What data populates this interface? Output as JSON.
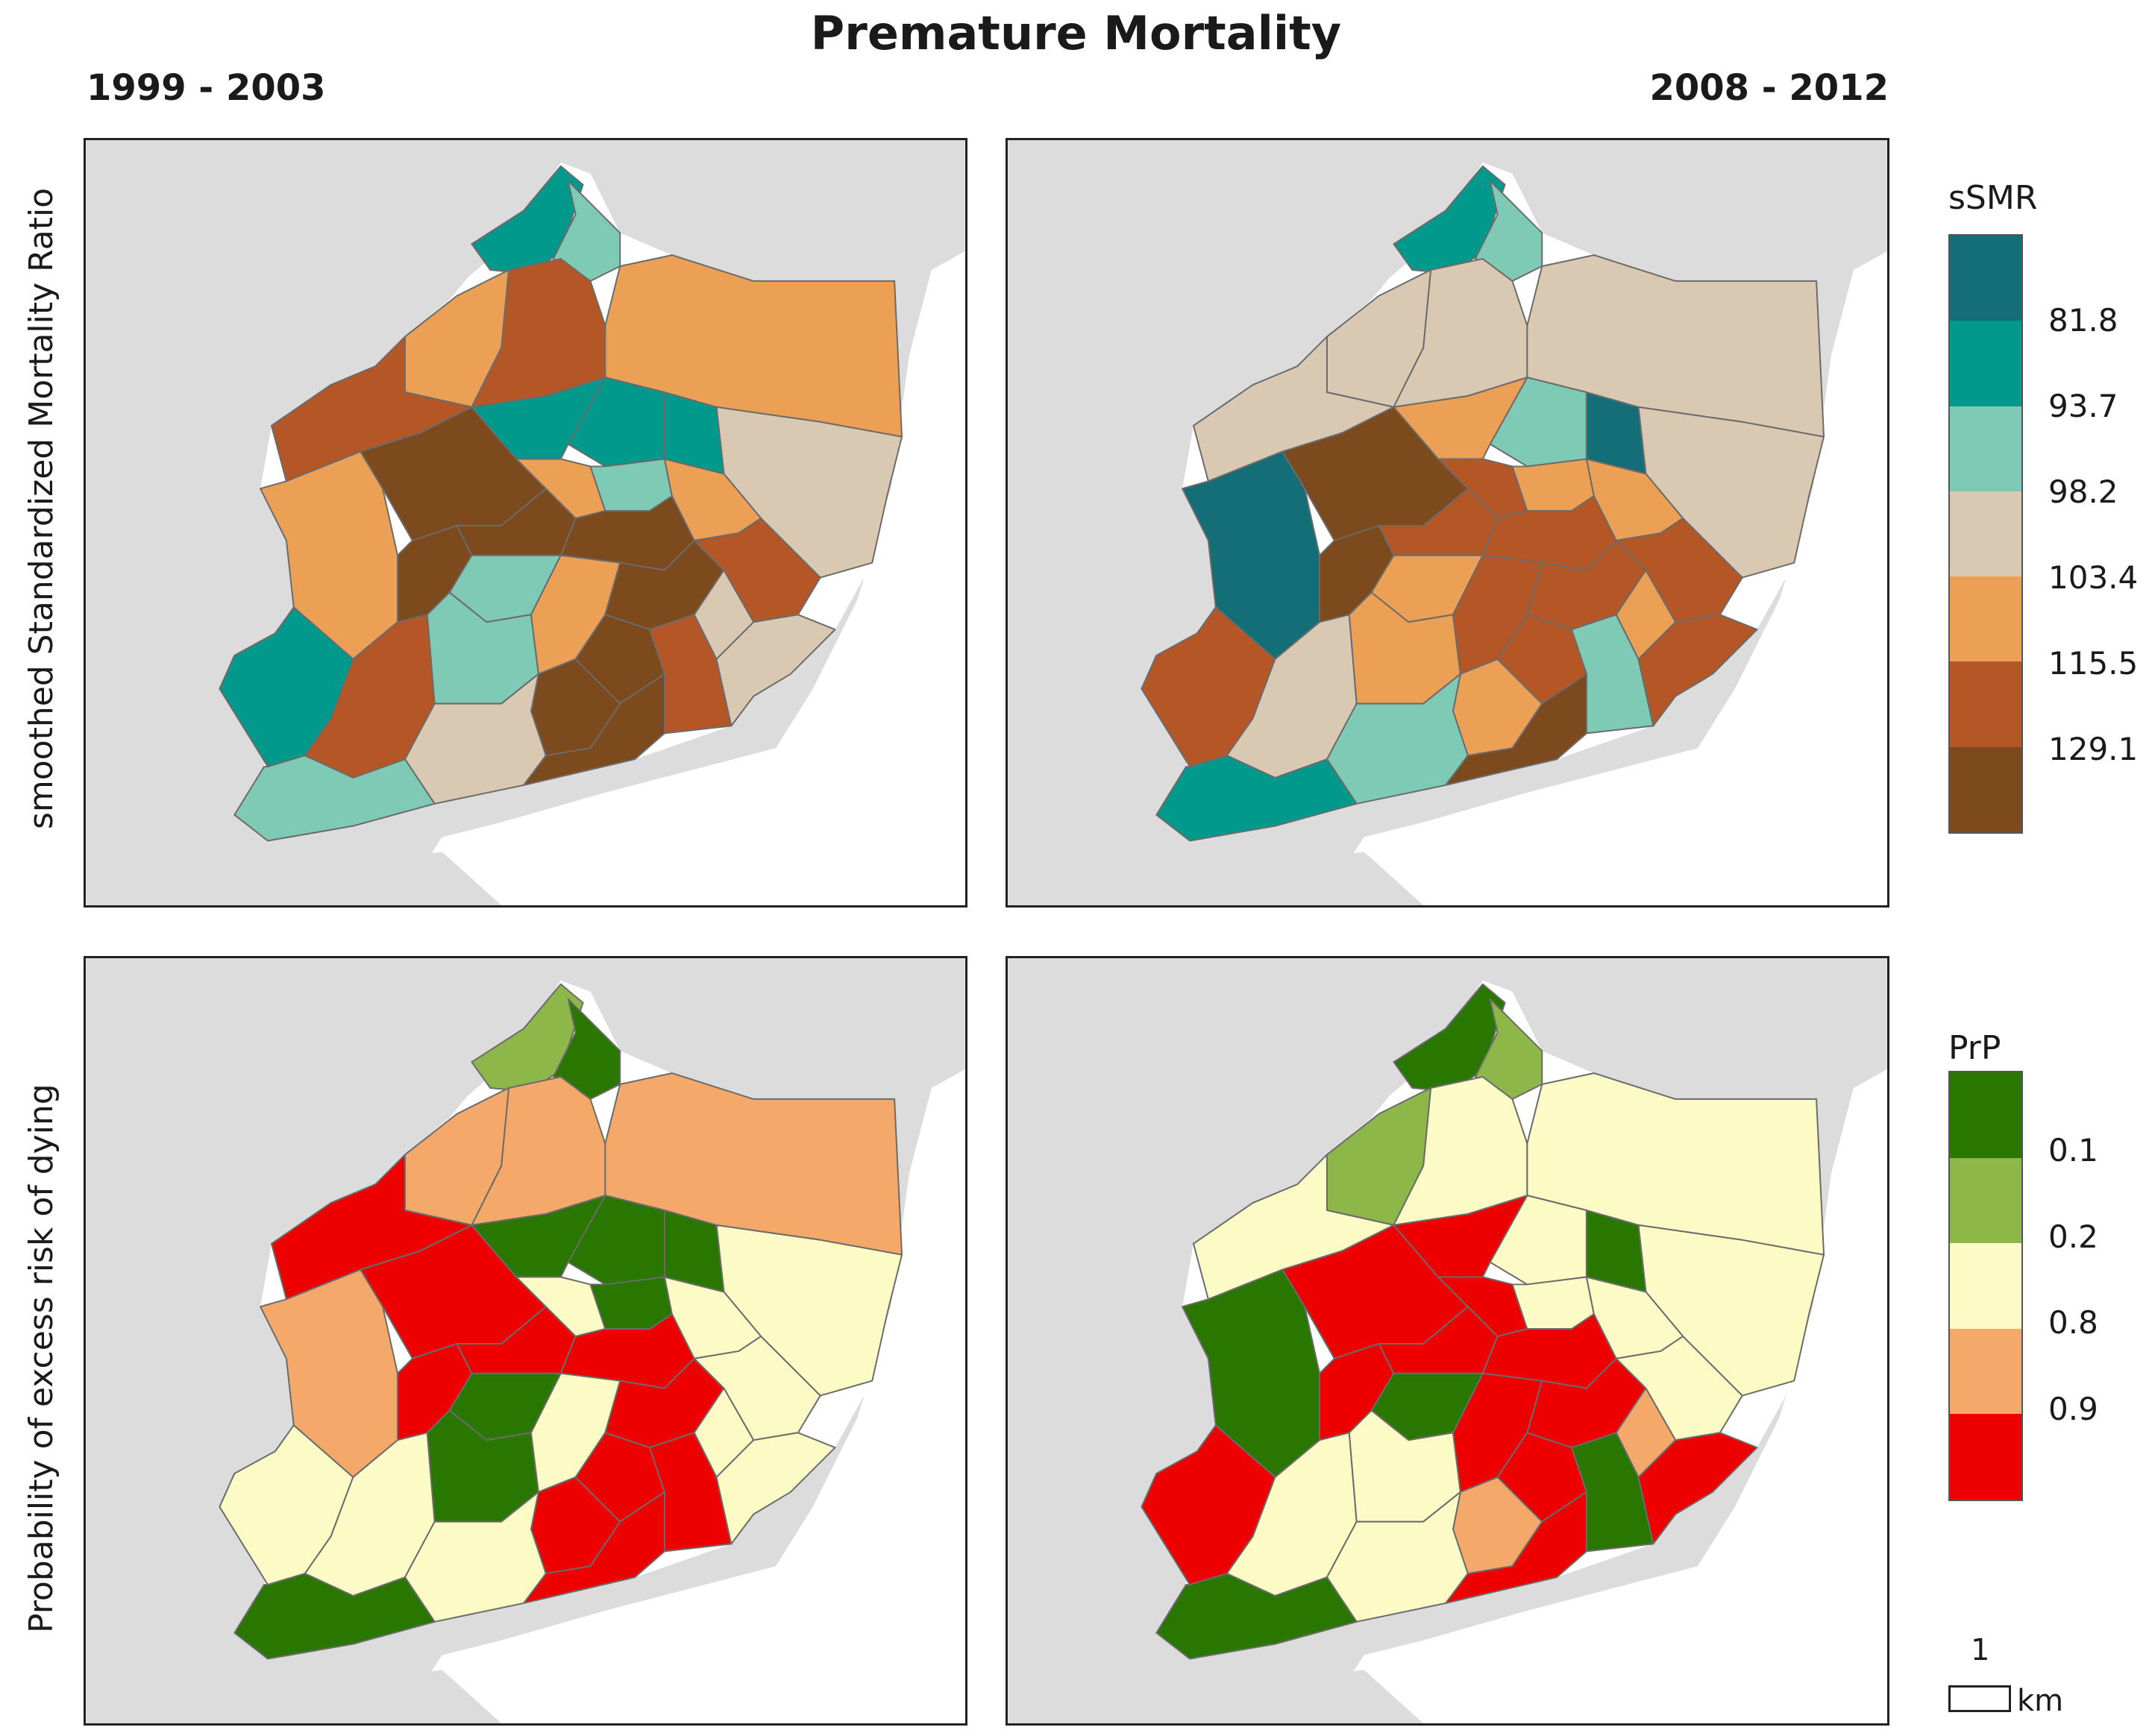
{
  "title": "Premature Mortality",
  "periods": [
    "1999 - 2003",
    "2008 - 2012"
  ],
  "row_labels": [
    "smoothed Standardized Mortality Ratio",
    "Probability of excess risk of dying"
  ],
  "legends": {
    "ssmr": {
      "title": "sSMR",
      "breaks": [
        "81.8",
        "93.7",
        "98.2",
        "103.4",
        "115.5",
        "129.1"
      ],
      "colors": [
        "#146e78",
        "#00998c",
        "#7fcab5",
        "#d9c9b3",
        "#eba055",
        "#b55626",
        "#7d4a1d"
      ]
    },
    "prp": {
      "title": "PrP",
      "breaks": [
        "0.1",
        "0.2",
        "0.8",
        "0.9"
      ],
      "colors": [
        "#2a7700",
        "#8db849",
        "#fdfbc5",
        "#f4a86a",
        "#ee0000"
      ]
    }
  },
  "palette": {
    "background_land": "#dcdcdc",
    "boundary": "#6b6b6b"
  },
  "scale_bar": {
    "value": "1",
    "unit": "km"
  },
  "maps": [
    {
      "id": "ssmr-1999-2003",
      "legend": "ssmr",
      "classes": [
        1,
        2,
        4,
        5,
        4,
        5,
        1,
        3,
        4,
        6,
        1,
        4,
        2,
        4,
        1,
        6,
        6,
        6,
        2,
        1,
        5,
        2,
        4,
        6,
        5,
        3,
        6,
        6,
        5,
        3,
        3,
        6,
        2
      ]
    },
    {
      "id": "ssmr-2008-2012",
      "legend": "ssmr",
      "classes": [
        1,
        2,
        3,
        3,
        3,
        3,
        2,
        3,
        0,
        6,
        4,
        5,
        4,
        4,
        0,
        6,
        5,
        5,
        4,
        5,
        3,
        4,
        5,
        5,
        5,
        4,
        4,
        5,
        2,
        5,
        2,
        6,
        1
      ]
    },
    {
      "id": "prp-1999-2003",
      "legend": "prp",
      "classes": [
        1,
        0,
        3,
        3,
        3,
        4,
        0,
        2,
        3,
        4,
        0,
        2,
        0,
        2,
        0,
        4,
        4,
        4,
        0,
        2,
        2,
        0,
        2,
        4,
        2,
        2,
        4,
        4,
        4,
        2,
        2,
        4,
        0
      ]
    },
    {
      "id": "prp-2008-2012",
      "legend": "prp",
      "classes": [
        0,
        1,
        1,
        2,
        2,
        2,
        2,
        2,
        0,
        4,
        4,
        4,
        2,
        2,
        0,
        4,
        4,
        4,
        0,
        4,
        2,
        2,
        4,
        4,
        2,
        3,
        3,
        4,
        0,
        4,
        2,
        4,
        0
      ]
    }
  ]
}
